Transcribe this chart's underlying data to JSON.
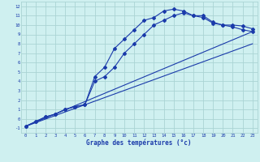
{
  "xlabel": "Graphe des températures (°c)",
  "bg_color": "#cff0f0",
  "grid_color": "#aad4d4",
  "line_color": "#1a3aaa",
  "xlim": [
    -0.5,
    23.5
  ],
  "ylim": [
    -1.5,
    12.5
  ],
  "xticks": [
    0,
    1,
    2,
    3,
    4,
    5,
    6,
    7,
    8,
    9,
    10,
    11,
    12,
    13,
    14,
    15,
    16,
    17,
    18,
    19,
    20,
    21,
    22,
    23
  ],
  "yticks": [
    -1,
    0,
    1,
    2,
    3,
    4,
    5,
    6,
    7,
    8,
    9,
    10,
    11,
    12
  ],
  "series1_x": [
    0,
    1,
    2,
    3,
    4,
    5,
    6,
    7,
    8,
    9,
    10,
    11,
    12,
    13,
    14,
    15,
    16,
    17,
    18,
    19,
    20,
    21,
    22,
    23
  ],
  "series1_y": [
    -0.8,
    -0.3,
    0.2,
    0.5,
    1.0,
    1.3,
    1.5,
    4.5,
    5.5,
    7.5,
    8.5,
    9.5,
    10.5,
    10.8,
    11.5,
    11.7,
    11.5,
    11.0,
    11.0,
    10.3,
    10.0,
    10.0,
    9.9,
    9.6
  ],
  "series2_x": [
    0,
    1,
    2,
    3,
    4,
    5,
    6,
    7,
    8,
    9,
    10,
    11,
    12,
    13,
    14,
    15,
    16,
    17,
    18,
    19,
    20,
    21,
    22,
    23
  ],
  "series2_y": [
    -0.8,
    -0.3,
    0.2,
    0.5,
    1.0,
    1.3,
    1.5,
    4.0,
    4.5,
    5.5,
    7.0,
    8.0,
    9.0,
    10.0,
    10.5,
    11.0,
    11.3,
    11.0,
    10.8,
    10.2,
    10.0,
    9.8,
    9.5,
    9.3
  ],
  "series3_x": [
    0,
    23
  ],
  "series3_y": [
    -0.8,
    9.3
  ],
  "series4_x": [
    0,
    23
  ],
  "series4_y": [
    -0.8,
    8.0
  ],
  "xlabel_fontsize": 5.5,
  "tick_fontsize": 4.0,
  "marker_size": 2.0,
  "line_width": 0.8
}
